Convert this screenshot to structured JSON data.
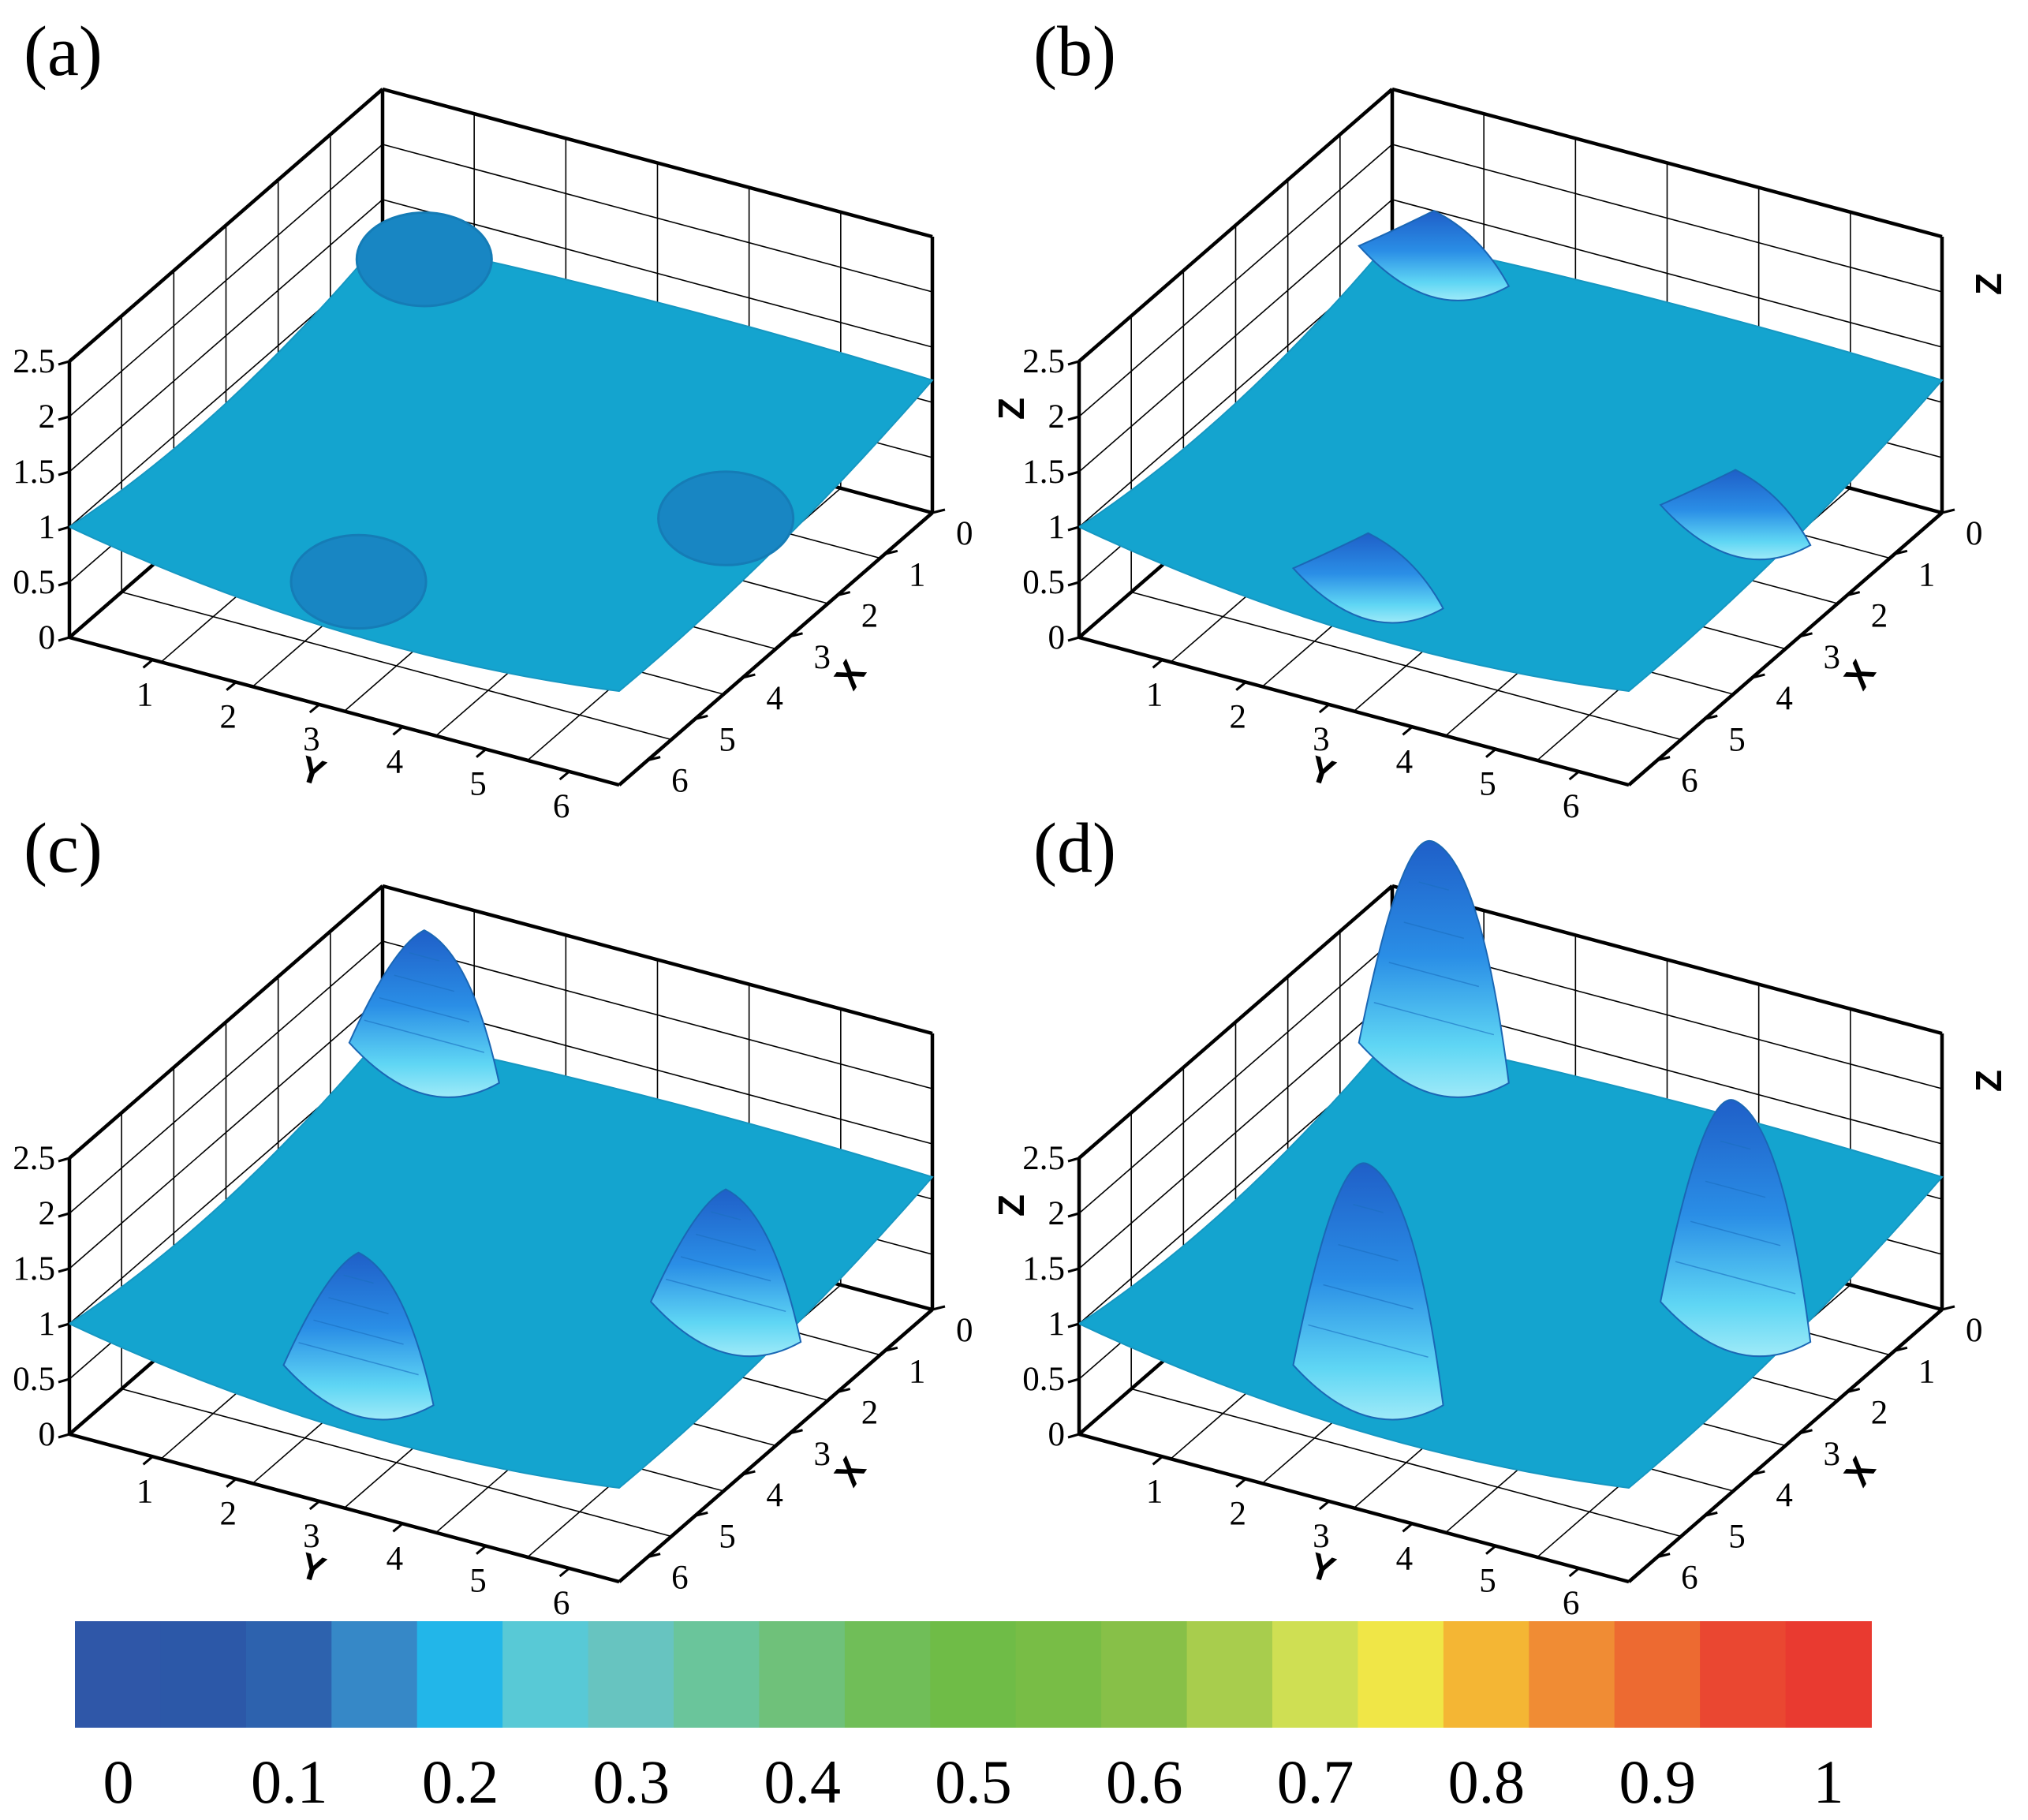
{
  "chart_data": {
    "type": "surface3d",
    "panels": [
      {
        "id": "a",
        "label": "(a)",
        "blob_peak": 1.2,
        "show_z_label": false
      },
      {
        "id": "b",
        "label": "(b)",
        "blob_peak": 1.5,
        "show_z_label": true
      },
      {
        "id": "c",
        "label": "(c)",
        "blob_peak": 2.2,
        "show_z_label": false
      },
      {
        "id": "d",
        "label": "(d)",
        "blob_peak": 3.0,
        "show_z_label": true
      }
    ],
    "surface": {
      "base_level": 1.0,
      "blobs": [
        {
          "x": 0.0,
          "y": 0.5
        },
        {
          "x": 3.3,
          "y": 6.0
        },
        {
          "x": 6.3,
          "y": 3.3
        }
      ]
    },
    "axes": {
      "xlabel": "X",
      "ylabel": "Y",
      "zlabel": "Z",
      "xlim": [
        0,
        6.6
      ],
      "ylim": [
        0,
        6.6
      ],
      "zlim": [
        0,
        2.5
      ],
      "x_ticks": [
        0,
        1,
        2,
        3,
        4,
        5,
        6
      ],
      "y_ticks": [
        1,
        2,
        3,
        4,
        5,
        6
      ],
      "z_ticks": [
        0,
        0.5,
        1,
        1.5,
        2,
        2.5
      ],
      "x_tick_labels": [
        "0",
        "1",
        "2",
        "3",
        "4",
        "5",
        "6"
      ],
      "y_tick_labels": [
        "1",
        "2",
        "3",
        "4",
        "5",
        "6"
      ],
      "z_tick_labels": [
        "0",
        "0.5",
        "1",
        "1.5",
        "2",
        "2.5"
      ]
    },
    "colorbar": {
      "min": 0,
      "max": 1,
      "tick_labels": [
        "0",
        "0.1",
        "0.2",
        "0.3",
        "0.4",
        "0.5",
        "0.6",
        "0.7",
        "0.8",
        "0.9",
        "1"
      ],
      "colors": [
        "#2f57a8",
        "#2c58a8",
        "#2d62ae",
        "#3688c7",
        "#22b6e9",
        "#58c9d6",
        "#67c4c0",
        "#6ac59b",
        "#6fc17a",
        "#70be58",
        "#6fbc47",
        "#78bd46",
        "#87c048",
        "#a8cd4d",
        "#cfdf53",
        "#f0e647",
        "#f4b634",
        "#f08c34",
        "#ed6a31",
        "#ea4731",
        "#e93a30"
      ]
    }
  }
}
